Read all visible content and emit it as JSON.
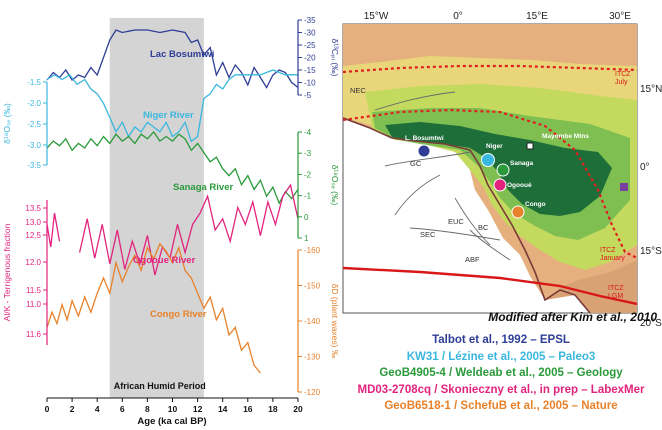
{
  "chart_data": {
    "type": "line",
    "shaded_period": {
      "x": [
        5,
        12.5
      ],
      "label": "African  Humid Period",
      "color": "#d4d4d4"
    },
    "x_axis": {
      "label": "Age (ka cal BP)",
      "min": 0,
      "max": 20,
      "ticks": [
        "0",
        "2",
        "4",
        "6",
        "8",
        "10",
        "12",
        "14",
        "16",
        "18",
        "20"
      ]
    },
    "left_axes": [
      {
        "name": "niger",
        "label": "δ¹⁸Oₛₑ (‰)",
        "color": "#3ab7de",
        "ticks": [
          "-3.5",
          "-3.0",
          "-2.5",
          "-2.0",
          "-1.5"
        ]
      },
      {
        "name": "ogooue",
        "label": "Al/K - Terrigenous fraction",
        "color": "#e2237e",
        "ticks": [
          "12.0",
          "12.5",
          "13.0",
          "13.5",
          "11.0",
          "11.5",
          "11.6"
        ]
      }
    ],
    "right_axes": [
      {
        "name": "bosumtwi",
        "label": "δ¹³Cₚᵢ (‰)",
        "color": "#2e3d96",
        "ticks": [
          "-35",
          "-30",
          "-25",
          "-20",
          "-15",
          "-10",
          "-5"
        ]
      },
      {
        "name": "sanaga",
        "label": "δ¹⁸Oₛₑ (‰)",
        "color": "#2a9a3a",
        "ticks": [
          "-4",
          "-3",
          "-2",
          "-1",
          "0",
          "1"
        ]
      },
      {
        "name": "congo",
        "label": "δD (plant waxes) ‰",
        "color": "#e8812a",
        "ticks": [
          "-160",
          "-150",
          "-140",
          "-130",
          "-120"
        ]
      }
    ],
    "series": [
      {
        "name": "Lac Bosumtwi",
        "color": "#2e3d96",
        "x": [
          0,
          0.5,
          1,
          1.5,
          2,
          2.5,
          3,
          3.5,
          4,
          4.5,
          5,
          5.5,
          6,
          7,
          8,
          9,
          10,
          11,
          11.5,
          12,
          12.5,
          13,
          13.5,
          14,
          14.5,
          15,
          15.5,
          16,
          16.5,
          17,
          17.5,
          18,
          18.5,
          19,
          19.5,
          20
        ],
        "y": [
          -11,
          -14,
          -12,
          -15,
          -11,
          -13,
          -12,
          -16,
          -13,
          -20,
          -27,
          -31,
          -30,
          -31,
          -31,
          -30,
          -31,
          -30,
          -26,
          -27,
          -21,
          -24,
          -13,
          -18,
          -12,
          -17,
          -14,
          -9,
          -16,
          -12,
          -8,
          -13,
          -15,
          -14,
          -10,
          -8
        ]
      },
      {
        "name": "Niger River",
        "color": "#3ab7de",
        "x": [
          0,
          0.6,
          1.2,
          1.8,
          2.4,
          3,
          3.5,
          4,
          4.5,
          5,
          5.5,
          6,
          6.5,
          7,
          7.5,
          8,
          8.5,
          9,
          9.5,
          10,
          10.5,
          11,
          11.5,
          12,
          12.5,
          13,
          13.5,
          14,
          14.5,
          15,
          16,
          17,
          18,
          19,
          20
        ],
        "y": [
          -1.7,
          -1.6,
          -1.7,
          -1.6,
          -1.8,
          -1.7,
          -1.9,
          -2.0,
          -2.2,
          -2.5,
          -2.8,
          -2.6,
          -2.9,
          -2.7,
          -2.8,
          -2.6,
          -2.7,
          -2.8,
          -2.6,
          -2.9,
          -2.8,
          -2.6,
          -3.0,
          -2.9,
          -2.1,
          -2.0,
          -1.8,
          -1.9,
          -1.7,
          -1.6,
          -1.6,
          -1.6,
          -1.5,
          -1.6,
          -1.6
        ]
      },
      {
        "name": "Sanaga River",
        "color": "#2a9a3a",
        "x": [
          0,
          0.5,
          1,
          1.5,
          2,
          2.5,
          3,
          3.5,
          4,
          4.5,
          5,
          5.5,
          6,
          6.5,
          7,
          7.5,
          8,
          8.5,
          9,
          9.5,
          10,
          10.5,
          11,
          11.5,
          12,
          12.5,
          13,
          13.5,
          14,
          14.5,
          15,
          15.5,
          16,
          16.5,
          17,
          17.5,
          18,
          18.5,
          19,
          19.5,
          20
        ],
        "y": [
          -3.0,
          -3.3,
          -3.1,
          -3.4,
          -2.9,
          -3.2,
          -3.0,
          -3.4,
          -3.1,
          -3.5,
          -3.2,
          -3.6,
          -3.3,
          -3.5,
          -3.2,
          -3.6,
          -3.4,
          -3.7,
          -3.3,
          -3.5,
          -3.3,
          -3.6,
          -3.4,
          -2.9,
          -3.2,
          -2.8,
          -2.4,
          -2.6,
          -2.1,
          -1.8,
          -2.1,
          -1.4,
          -1.8,
          -1.2,
          -1.6,
          -0.9,
          -1.3,
          -0.6,
          -1.1,
          -0.8,
          -1.2
        ]
      },
      {
        "name": "Ogooue River",
        "color": "#e2237e",
        "x": [
          0,
          0.3,
          0.6,
          1,
          2.6,
          3.2,
          3.8,
          4.4,
          5,
          5.6,
          6.2,
          6.8,
          7.4,
          8,
          8.6,
          9.2,
          9.8,
          10.4,
          11,
          11.6,
          12.2,
          12.8,
          13.4,
          14,
          14.6,
          15.2,
          15.8,
          16.4,
          17,
          17.6,
          18.2,
          18.8,
          19.4,
          20
        ],
        "y": [
          12.9,
          12.5,
          13.1,
          12.6,
          12.4,
          13.0,
          12.3,
          12.9,
          12.2,
          12.8,
          12.1,
          12.6,
          12.2,
          12.7,
          12.0,
          12.5,
          12.3,
          12.9,
          12.4,
          12.9,
          13.1,
          13.4,
          12.8,
          13.0,
          12.6,
          13.2,
          12.9,
          13.3,
          12.7,
          13.3,
          12.9,
          13.4,
          13.6,
          13.0
        ]
      },
      {
        "name": "Congo River",
        "color": "#e8812a",
        "x": [
          0,
          0.4,
          0.8,
          1.2,
          1.6,
          2,
          2.5,
          3,
          3.5,
          4,
          4.5,
          5,
          5.5,
          6,
          6.5,
          7,
          7.5,
          8,
          8.5,
          9,
          9.5,
          10,
          10.5,
          11,
          11.5,
          12,
          12.5,
          13,
          13.5,
          14,
          14.5,
          15,
          15.5,
          16,
          16.5,
          17
        ],
        "y": [
          -137,
          -141,
          -138,
          -143,
          -139,
          -144,
          -140,
          -145,
          -141,
          -146,
          -150,
          -146,
          -154,
          -149,
          -153,
          -156,
          -152,
          -158,
          -155,
          -159,
          -157,
          -154,
          -158,
          -152,
          -150,
          -146,
          -142,
          -145,
          -139,
          -142,
          -135,
          -137,
          -131,
          -133,
          -127,
          -125
        ]
      }
    ],
    "series_labels": [
      "Lac Bosumtwi",
      "Niger River",
      "Sanaga River",
      "Ogooue River",
      "Congo River"
    ]
  },
  "map": {
    "lon_labels": [
      "15°W",
      "0°",
      "15°E",
      "30°E"
    ],
    "lat_labels": [
      "15°N",
      "0°",
      "15°S",
      "20°S"
    ],
    "site_labels": [
      "L. Bosumtwi",
      "Niger",
      "Sanaga",
      "Ogooué",
      "Congo",
      "Mayombe Mtns"
    ],
    "current_labels": [
      "NEC",
      "GC",
      "EUC",
      "SEC",
      "ABF",
      "BC"
    ],
    "itcz_labels": {
      "july": "ITCZ July",
      "january": "ITCZ January",
      "lgm": "ITCZ LGM"
    },
    "caption": "Modified after Kim et al., 2010",
    "colors": {
      "land": "#e6b07e",
      "sahel": "#e9d57a",
      "savanna": "#c4da5e",
      "wet": "#7fbf52",
      "forest": "#1e6e3a",
      "ocean": "#ffffff",
      "itcz": "#e02020"
    }
  },
  "references": [
    {
      "text": "Talbot et al., 1992 – EPSL",
      "color": "#2e3d96"
    },
    {
      "text": "KW31 / Lézine et al., 2005 – Paleo3",
      "color": "#3ab7de"
    },
    {
      "text": "GeoB4905-4 / Weldeab et al., 2005 – Geology",
      "color": "#2a9a3a"
    },
    {
      "text": "MD03-2708cq / Skonieczny et al., in prep – LabexMer",
      "color": "#e2237e"
    },
    {
      "text": "GeoB6518-1 / SchefuB et al., 2005 – Nature",
      "color": "#e8812a"
    }
  ]
}
